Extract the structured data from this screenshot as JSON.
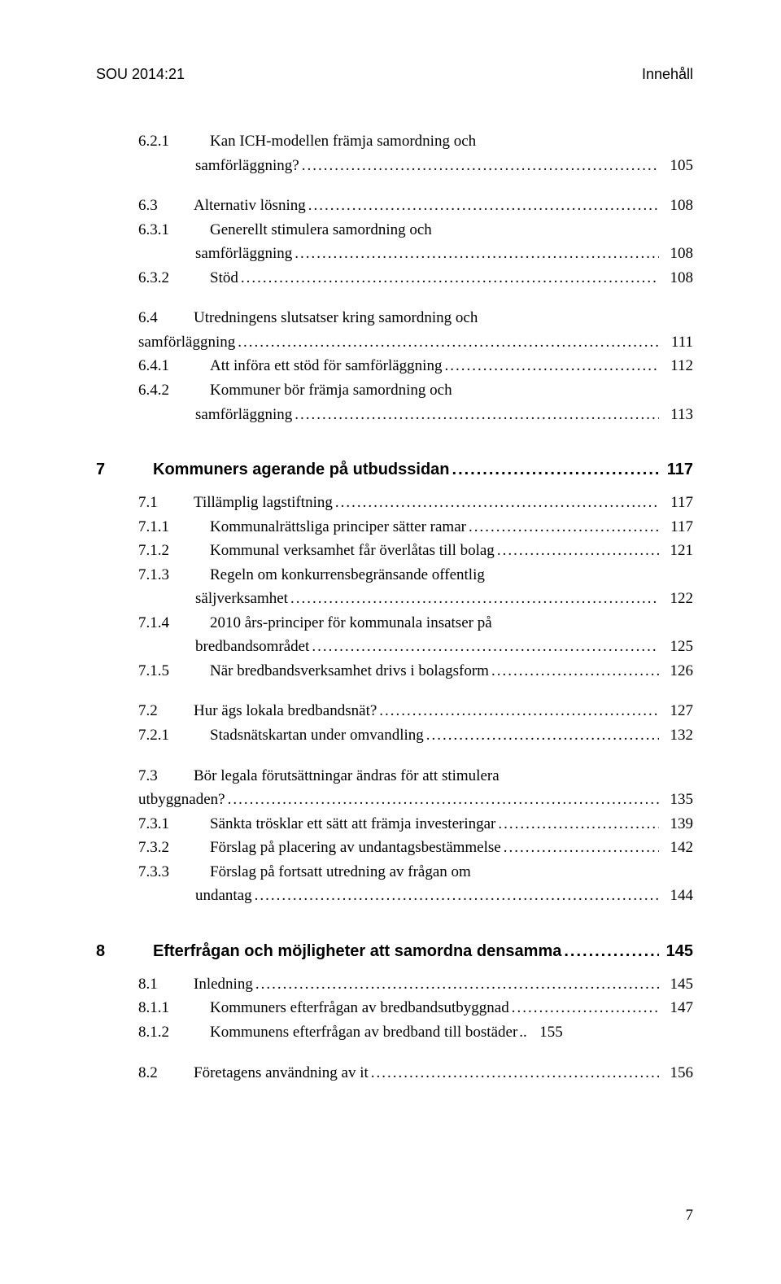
{
  "header": {
    "left": "SOU 2014:21",
    "right": "Innehåll"
  },
  "footer": {
    "page_number": "7"
  },
  "toc": [
    {
      "level": 3,
      "num": "6.2.1",
      "label": "Kan ICH-modellen främja samordning och",
      "page": "",
      "cont": "samförläggning?",
      "contPage": "105"
    },
    {
      "level": 2,
      "num": "6.3",
      "label": "Alternativ lösning",
      "page": "108",
      "gapTop": true
    },
    {
      "level": 3,
      "num": "6.3.1",
      "label": "Generellt stimulera samordning och",
      "page": "",
      "cont": "samförläggning",
      "contPage": "108"
    },
    {
      "level": 3,
      "num": "6.3.2",
      "label": "Stöd",
      "page": "108"
    },
    {
      "level": 2,
      "num": "6.4",
      "label": "Utredningens slutsatser kring samordning och",
      "page": "",
      "cont": "samförläggning",
      "contPage": "111",
      "gapTop": true,
      "contIndent": "52px"
    },
    {
      "level": 3,
      "num": "6.4.1",
      "label": "Att införa ett stöd för samförläggning",
      "page": "112"
    },
    {
      "level": 3,
      "num": "6.4.2",
      "label": "Kommuner bör främja samordning och",
      "page": "",
      "cont": "samförläggning",
      "contPage": "113"
    },
    {
      "chapter": true,
      "num": "7",
      "label": "Kommuners agerande på utbudssidan",
      "page": "117"
    },
    {
      "level": 2,
      "num": "7.1",
      "label": "Tillämplig lagstiftning",
      "page": "117"
    },
    {
      "level": 3,
      "num": "7.1.1",
      "label": "Kommunalrättsliga principer sätter ramar",
      "page": "117"
    },
    {
      "level": 3,
      "num": "7.1.2",
      "label": "Kommunal verksamhet får överlåtas till bolag",
      "page": "121"
    },
    {
      "level": 3,
      "num": "7.1.3",
      "label": "Regeln om konkurrensbegränsande offentlig",
      "page": "",
      "cont": "säljverksamhet",
      "contPage": "122"
    },
    {
      "level": 3,
      "num": "7.1.4",
      "label": "2010 års-principer för kommunala insatser på",
      "page": "",
      "cont": "bredbandsområdet",
      "contPage": "125"
    },
    {
      "level": 3,
      "num": "7.1.5",
      "label": "När bredbandsverksamhet drivs i bolagsform",
      "page": "126"
    },
    {
      "level": 2,
      "num": "7.2",
      "label": "Hur ägs lokala bredbandsnät?",
      "page": "127",
      "gapTop": true
    },
    {
      "level": 3,
      "num": "7.2.1",
      "label": "Stadsnätskartan under omvandling",
      "page": "132"
    },
    {
      "level": 2,
      "num": "7.3",
      "label": "Bör legala förutsättningar ändras för att stimulera",
      "page": "",
      "cont": "utbyggnaden?",
      "contPage": "135",
      "gapTop": true,
      "contIndent": "52px"
    },
    {
      "level": 3,
      "num": "7.3.1",
      "label": "Sänkta trösklar ett sätt att främja investeringar",
      "page": "139"
    },
    {
      "level": 3,
      "num": "7.3.2",
      "label": "Förslag på placering av undantagsbestämmelse",
      "page": "142"
    },
    {
      "level": 3,
      "num": "7.3.3",
      "label": "Förslag på fortsatt utredning av frågan om",
      "page": "",
      "cont": "undantag",
      "contPage": "144"
    },
    {
      "chapter": true,
      "num": "8",
      "label": "Efterfrågan och möjligheter att samordna densamma",
      "page": "145"
    },
    {
      "level": 2,
      "num": "8.1",
      "label": "Inledning",
      "page": "145"
    },
    {
      "level": 3,
      "num": "8.1.1",
      "label": "Kommuners efterfrågan av bredbandsutbyggnad",
      "page": "147"
    },
    {
      "level": 3,
      "num": "8.1.2",
      "label": "Kommunens efterfrågan av bredband till bostäder",
      "page": "155",
      "tightLeader": true
    },
    {
      "level": 2,
      "num": "8.2",
      "label": "Företagens användning av it",
      "page": "156",
      "gapTop": true
    }
  ]
}
